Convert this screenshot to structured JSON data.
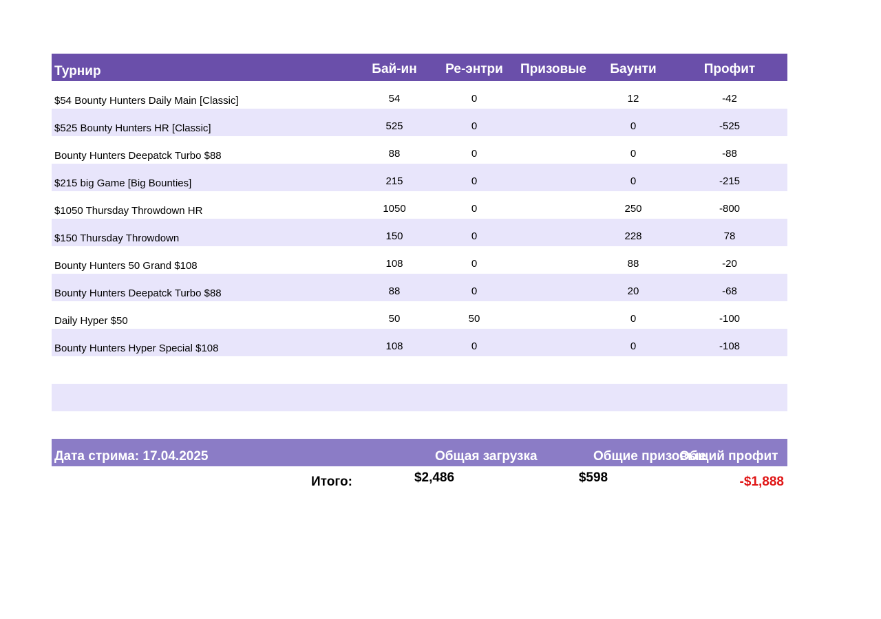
{
  "table": {
    "headers": {
      "tournament": "Турнир",
      "buyin": "Бай-ин",
      "reentry": "Ре-энтри",
      "prize": "Призовые",
      "bounty": "Баунти",
      "profit": "Профит"
    },
    "rows": [
      {
        "name": "$54 Bounty Hunters Daily Main [Classic]",
        "buyin": "54",
        "reentry": "0",
        "prize": "",
        "bounty": "12",
        "profit": "-42"
      },
      {
        "name": "$525 Bounty Hunters HR [Classic]",
        "buyin": "525",
        "reentry": "0",
        "prize": "",
        "bounty": "0",
        "profit": "-525"
      },
      {
        "name": "Bounty Hunters Deepatck Turbo $88",
        "buyin": "88",
        "reentry": "0",
        "prize": "",
        "bounty": "0",
        "profit": "-88"
      },
      {
        "name": "$215 big Game [Big Bounties]",
        "buyin": "215",
        "reentry": "0",
        "prize": "",
        "bounty": "0",
        "profit": "-215"
      },
      {
        "name": "$1050 Thursday Throwdown HR",
        "buyin": "1050",
        "reentry": "0",
        "prize": "",
        "bounty": "250",
        "profit": "-800"
      },
      {
        "name": "$150 Thursday Throwdown",
        "buyin": "150",
        "reentry": "0",
        "prize": "",
        "bounty": "228",
        "profit": "78"
      },
      {
        "name": "Bounty Hunters 50 Grand $108",
        "buyin": "108",
        "reentry": "0",
        "prize": "",
        "bounty": "88",
        "profit": "-20"
      },
      {
        "name": "Bounty Hunters Deepatck Turbo $88",
        "buyin": "88",
        "reentry": "0",
        "prize": "",
        "bounty": "20",
        "profit": "-68"
      },
      {
        "name": "Daily Hyper $50",
        "buyin": "50",
        "reentry": "50",
        "prize": "",
        "bounty": "0",
        "profit": "-100"
      },
      {
        "name": "Bounty Hunters Hyper Special $108",
        "buyin": "108",
        "reentry": "0",
        "prize": "",
        "bounty": "0",
        "profit": "-108"
      }
    ]
  },
  "summary": {
    "stream_date": "Дата стрима: 17.04.2025",
    "total_load_label": "Общая загрузка",
    "total_prize_label": "Общие призовые",
    "total_profit_label": "Общий профит",
    "totals_label": "Итого:",
    "total_load": "$2,486",
    "total_prize": "$598",
    "total_profit": "-$1,888"
  },
  "colors": {
    "header_bg": "#6a4faa",
    "summary_header_bg": "#8b7cc6",
    "alt_row_bg": "#e8e5fb",
    "negative_total": "#e01515"
  }
}
